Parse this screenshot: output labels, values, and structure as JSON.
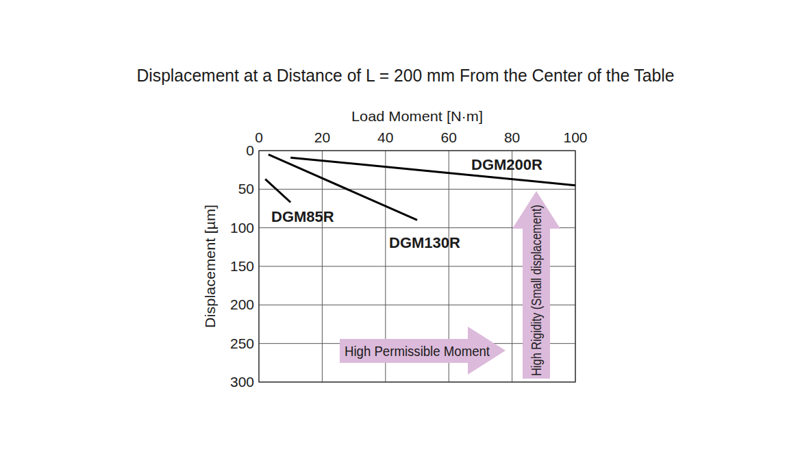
{
  "chart_data": {
    "type": "line",
    "title": "Displacement at a Distance of L = 200 mm From the Center of the Table",
    "x_label": "Load Moment [N·m]",
    "y_label": "Displacement [µm]",
    "xlim": [
      0,
      100
    ],
    "xticks": [
      0,
      20,
      40,
      60,
      80,
      100
    ],
    "ylim": [
      0,
      300
    ],
    "yticks": [
      0,
      50,
      100,
      150,
      200,
      250,
      300
    ],
    "grid": true,
    "series": [
      {
        "name": "DGM85R",
        "color": "#000000",
        "x": [
          2,
          10
        ],
        "values": [
          37,
          67
        ]
      },
      {
        "name": "DGM130R",
        "color": "#000000",
        "x": [
          3,
          50
        ],
        "values": [
          5,
          90
        ]
      },
      {
        "name": "DGM200R",
        "color": "#000000",
        "x": [
          10,
          100
        ],
        "values": [
          9,
          45
        ]
      }
    ],
    "annotations": [
      "High Permissible Moment",
      "High Rigidity (Small displacement)"
    ]
  }
}
